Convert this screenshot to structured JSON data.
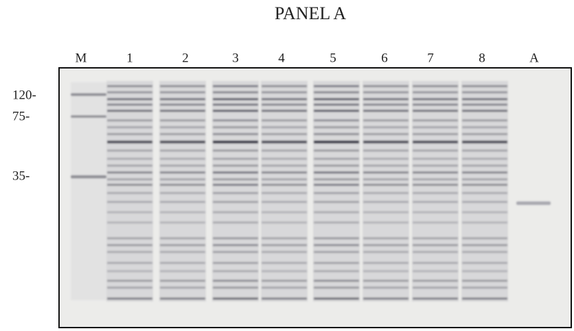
{
  "title": "PANEL A",
  "lanes": [
    "M",
    "1",
    "2",
    "3",
    "4",
    "5",
    "6",
    "7",
    "8",
    "A"
  ],
  "markers": [
    "120-",
    "75-",
    "35-"
  ]
}
